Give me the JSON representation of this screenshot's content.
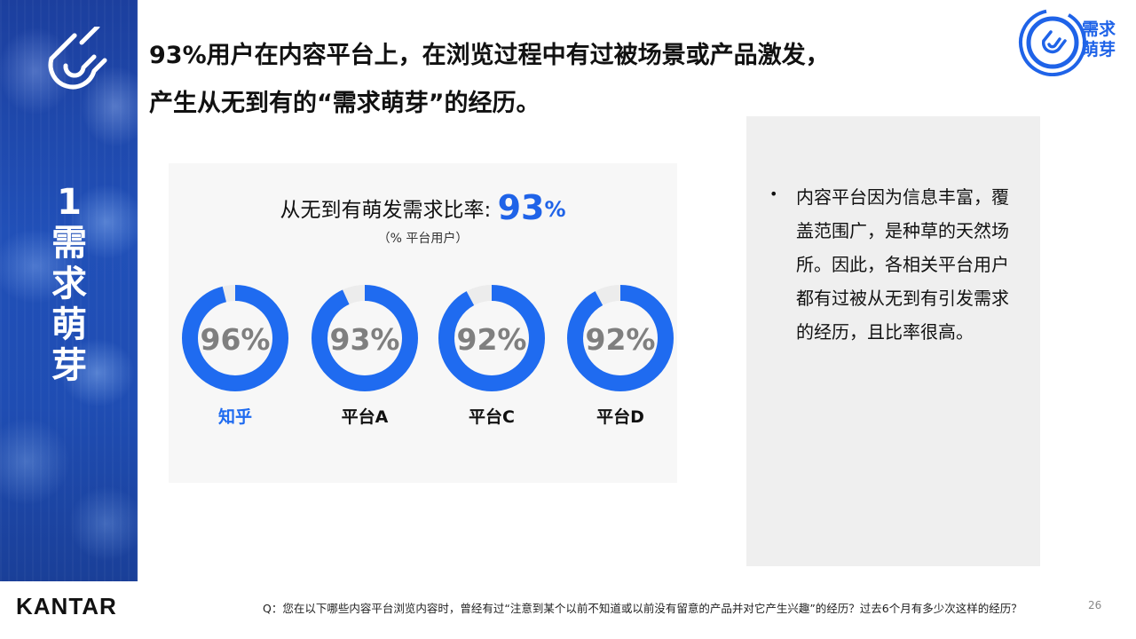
{
  "sidebar": {
    "section_number": "1",
    "section_chars": [
      "需",
      "求",
      "萌",
      "芽"
    ],
    "icon": "magnet-icon"
  },
  "headline": {
    "line1": "93%用户在内容平台上，在浏览过程中有过被场景或产品激发，",
    "line2": "产生从无到有的“需求萌芽”的经历。"
  },
  "badge": {
    "icon": "magnet-icon",
    "line1": "需求",
    "line2": "萌芽"
  },
  "chart_data": {
    "type": "donut",
    "title_prefix": "从无到有萌发需求比率: ",
    "overall_value": "93",
    "overall_unit": "%",
    "subtitle": "（% 平台用户）",
    "categories": [
      "知乎",
      "平台A",
      "平台C",
      "平台D"
    ],
    "values": [
      96,
      93,
      92,
      92
    ],
    "value_labels": [
      "96%",
      "93%",
      "92%",
      "92%"
    ],
    "max": 100,
    "colors": {
      "filled": "#1f6bf0",
      "remainder": "#ececec",
      "value_label": "#7f7f7f",
      "highlight_category": "#1f6bf0",
      "category": "#111111"
    },
    "highlight_index": 0
  },
  "notes": {
    "text": "内容平台因为信息丰富，覆盖范围广，是种草的天然场所。因此，各相关平台用户都有过被从无到有引发需求的经历，且比率很高。"
  },
  "footer": {
    "brand": "KANTAR",
    "question": "Q：您在以下哪些内容平台浏览内容时，曾经有过“注意到某个以前不知道或以前没有留意的产品并对它产生兴趣”的经历？过去6个月有多少次这样的经历？",
    "page": "26"
  },
  "colors": {
    "accent": "#1f63e8",
    "sidebar": "#1f4db3"
  }
}
